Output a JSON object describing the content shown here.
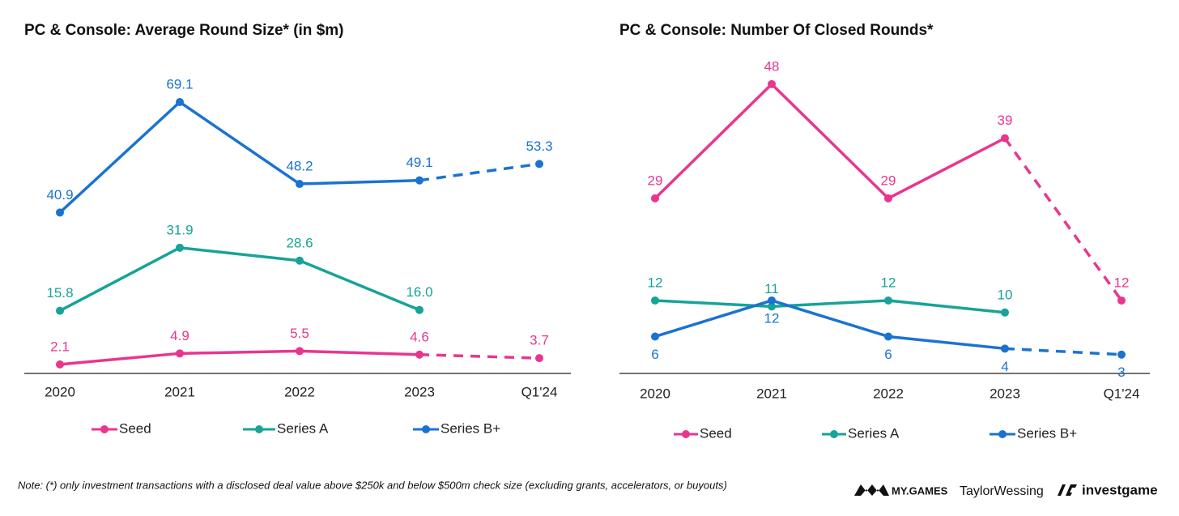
{
  "chart_data": [
    {
      "type": "line",
      "title": "PC & Console: Average Round Size* (in $m)",
      "categories": [
        "2020",
        "2021",
        "2022",
        "2023",
        "Q1'24"
      ],
      "ylim": [
        0,
        72
      ],
      "dashed_last": true,
      "series": [
        {
          "name": "Seed",
          "color": "#e8368f",
          "values": [
            2.1,
            4.9,
            5.5,
            4.6,
            3.7
          ],
          "label_position": "above"
        },
        {
          "name": "Series A",
          "color": "#17a398",
          "values": [
            15.8,
            31.9,
            28.6,
            16,
            null
          ],
          "value_labels": [
            "15.8",
            "31.9",
            "28.6",
            "16.0",
            null
          ],
          "label_position": "above"
        },
        {
          "name": "Series B+",
          "color": "#1a73d1",
          "values": [
            40.9,
            69.1,
            48.2,
            49.1,
            53.3
          ],
          "label_position": "above"
        }
      ]
    },
    {
      "type": "line",
      "title": "PC & Console: Number Of Closed Rounds*",
      "categories": [
        "2020",
        "2021",
        "2022",
        "2023",
        "Q1'24"
      ],
      "ylim": [
        0,
        50
      ],
      "dashed_last": true,
      "series": [
        {
          "name": "Seed",
          "color": "#e8368f",
          "values": [
            29,
            48,
            29,
            39,
            12
          ],
          "label_position": "above"
        },
        {
          "name": "Series A",
          "color": "#17a398",
          "values": [
            12,
            11,
            12,
            10,
            null
          ],
          "label_position": "above"
        },
        {
          "name": "Series B+",
          "color": "#1a73d1",
          "values": [
            6,
            12,
            6,
            4,
            3
          ],
          "label_position": "below"
        }
      ]
    }
  ],
  "note": "Note: (*) only investment transactions with a disclosed deal value above $250k and below $500m check size (excluding grants, accelerators, or buyouts)",
  "logos": [
    "MY.GAMES",
    "TaylorWessing",
    "investgame"
  ]
}
